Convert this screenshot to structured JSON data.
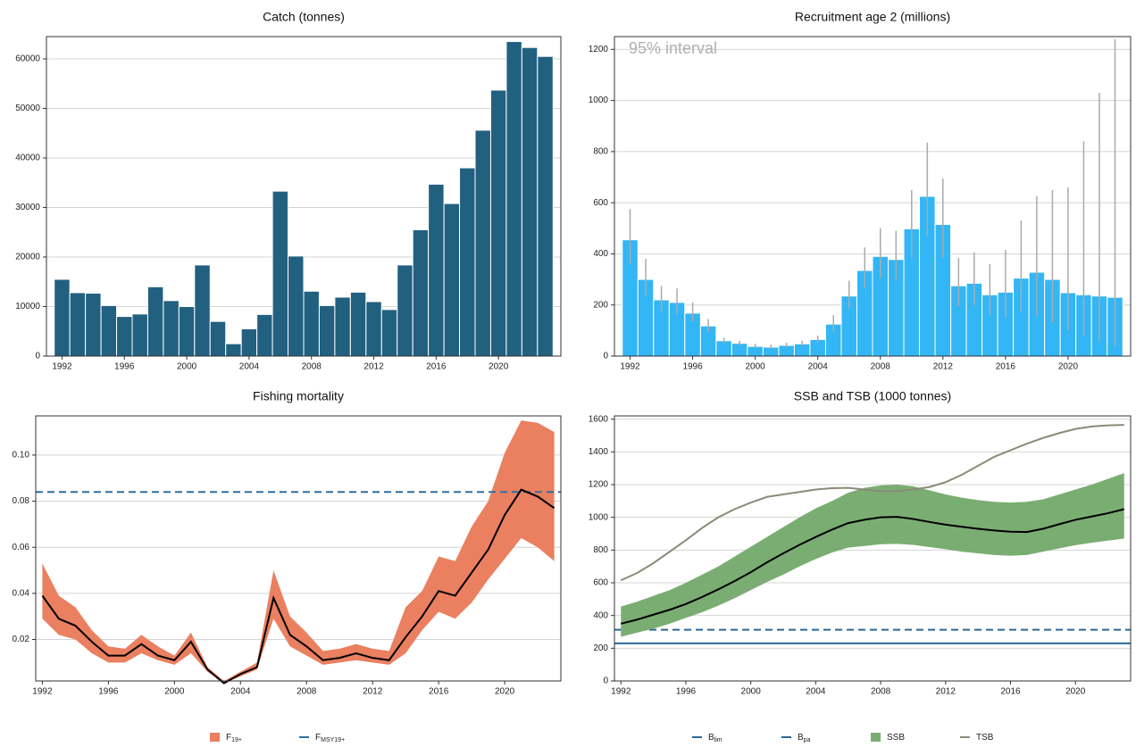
{
  "chart_data": [
    {
      "type": "bar",
      "title": "Catch (tonnes)",
      "x": [
        1992,
        1993,
        1994,
        1995,
        1996,
        1997,
        1998,
        1999,
        2000,
        2001,
        2002,
        2003,
        2004,
        2005,
        2006,
        2007,
        2008,
        2009,
        2010,
        2011,
        2012,
        2013,
        2014,
        2015,
        2016,
        2017,
        2018,
        2019,
        2020,
        2021,
        2022,
        2023
      ],
      "values": [
        15500,
        12800,
        12700,
        10200,
        8000,
        8500,
        14000,
        11200,
        10000,
        18400,
        7000,
        2500,
        5500,
        8400,
        33300,
        20200,
        13100,
        10200,
        11900,
        12900,
        11000,
        9400,
        18400,
        25500,
        34700,
        30800,
        38000,
        45600,
        53700,
        63500,
        62300,
        60500
      ],
      "color": "#22607f",
      "xlim": [
        1991,
        2024
      ],
      "xticks": [
        1992,
        1996,
        2000,
        2004,
        2008,
        2012,
        2016,
        2020
      ],
      "ylim": [
        0,
        64500
      ],
      "yticks": [
        0,
        10000,
        20000,
        30000,
        40000,
        50000,
        60000
      ],
      "grid": true
    },
    {
      "type": "bar",
      "title": "Recruitment age 2 (millions)",
      "annotation": "95% interval",
      "x": [
        1992,
        1993,
        1994,
        1995,
        1996,
        1997,
        1998,
        1999,
        2000,
        2001,
        2002,
        2003,
        2004,
        2005,
        2006,
        2007,
        2008,
        2009,
        2010,
        2011,
        2012,
        2013,
        2014,
        2015,
        2016,
        2017,
        2018,
        2019,
        2020,
        2021,
        2022,
        2023
      ],
      "values": [
        455,
        300,
        220,
        210,
        168,
        118,
        60,
        50,
        38,
        35,
        42,
        48,
        65,
        125,
        235,
        335,
        390,
        378,
        498,
        625,
        515,
        275,
        285,
        240,
        250,
        305,
        328,
        300,
        248,
        240,
        235,
        230
      ],
      "lower": [
        360,
        235,
        175,
        165,
        135,
        95,
        50,
        42,
        30,
        28,
        34,
        38,
        52,
        95,
        185,
        265,
        305,
        295,
        385,
        470,
        385,
        195,
        200,
        160,
        150,
        170,
        160,
        130,
        100,
        80,
        60,
        40
      ],
      "upper": [
        575,
        380,
        275,
        265,
        210,
        145,
        72,
        60,
        48,
        45,
        52,
        60,
        80,
        160,
        295,
        425,
        500,
        490,
        650,
        835,
        695,
        385,
        405,
        360,
        415,
        530,
        625,
        650,
        660,
        840,
        1030,
        1240
      ],
      "color": "#33b6f5",
      "error_color": "#aaaaaa",
      "xlim": [
        1991,
        2024
      ],
      "xticks": [
        1992,
        1996,
        2000,
        2004,
        2008,
        2012,
        2016,
        2020
      ],
      "ylim": [
        0,
        1250
      ],
      "yticks": [
        0,
        200,
        400,
        600,
        800,
        1000,
        1200
      ],
      "grid": true
    },
    {
      "type": "line",
      "title": "Fishing mortality",
      "x": [
        1992,
        1993,
        1994,
        1995,
        1996,
        1997,
        1998,
        1999,
        2000,
        2001,
        2002,
        2003,
        2004,
        2005,
        2006,
        2007,
        2008,
        2009,
        2010,
        2011,
        2012,
        2013,
        2014,
        2015,
        2016,
        2017,
        2018,
        2019,
        2020,
        2021,
        2022,
        2023
      ],
      "series": [
        {
          "name": "F",
          "name_sub": "19+",
          "color": "#000000",
          "band_color": "#ea8060",
          "values": [
            0.039,
            0.029,
            0.026,
            0.019,
            0.013,
            0.013,
            0.018,
            0.013,
            0.011,
            0.019,
            0.007,
            0.001,
            0.005,
            0.008,
            0.038,
            0.022,
            0.017,
            0.011,
            0.012,
            0.014,
            0.012,
            0.011,
            0.021,
            0.03,
            0.041,
            0.039,
            0.049,
            0.059,
            0.074,
            0.085,
            0.082,
            0.077
          ],
          "lower": [
            0.029,
            0.022,
            0.02,
            0.014,
            0.01,
            0.01,
            0.014,
            0.011,
            0.009,
            0.014,
            0.006,
            0.001,
            0.004,
            0.007,
            0.029,
            0.017,
            0.013,
            0.009,
            0.01,
            0.011,
            0.01,
            0.009,
            0.014,
            0.024,
            0.032,
            0.029,
            0.036,
            0.046,
            0.055,
            0.064,
            0.06,
            0.054
          ],
          "upper": [
            0.053,
            0.039,
            0.034,
            0.024,
            0.017,
            0.016,
            0.022,
            0.017,
            0.013,
            0.023,
            0.008,
            0.002,
            0.006,
            0.01,
            0.05,
            0.03,
            0.023,
            0.015,
            0.016,
            0.018,
            0.016,
            0.015,
            0.034,
            0.041,
            0.056,
            0.054,
            0.069,
            0.08,
            0.101,
            0.115,
            0.114,
            0.11
          ]
        },
        {
          "name": "F",
          "name_sub": "MSY19+",
          "kind": "hline",
          "value": 0.084,
          "color": "#2f6fa0",
          "dashed": true
        }
      ],
      "xlim": [
        1991.6,
        2023.4
      ],
      "xticks": [
        1992,
        1996,
        2000,
        2004,
        2008,
        2012,
        2016,
        2020
      ],
      "ylim": [
        0.002,
        0.117
      ],
      "yticks": [
        0.02,
        0.04,
        0.06,
        0.08,
        {
          "value": 0.1,
          "label": "0.10"
        }
      ],
      "grid": true
    },
    {
      "type": "line",
      "title": "SSB and TSB (1000 tonnes)",
      "x": [
        1992,
        1993,
        1994,
        1995,
        1996,
        1997,
        1998,
        1999,
        2000,
        2001,
        2002,
        2003,
        2004,
        2005,
        2006,
        2007,
        2008,
        2009,
        2010,
        2011,
        2012,
        2013,
        2014,
        2015,
        2016,
        2017,
        2018,
        2019,
        2020,
        2021,
        2022,
        2023
      ],
      "series": [
        {
          "name": "B",
          "name_sub": "lim",
          "kind": "hline",
          "value": 230,
          "color": "#2b6896",
          "dashed": false
        },
        {
          "name": "B",
          "name_sub": "pa",
          "kind": "hline",
          "value": 313,
          "color": "#2b6896",
          "dashed": true
        },
        {
          "name": "SSB",
          "color": "#000000",
          "band_color": "#7aad72",
          "values": [
            350,
            375,
            405,
            435,
            470,
            513,
            560,
            610,
            665,
            725,
            780,
            832,
            880,
            925,
            965,
            985,
            1000,
            1003,
            990,
            972,
            955,
            942,
            930,
            920,
            912,
            910,
            930,
            958,
            985,
            1005,
            1025,
            1050
          ],
          "lower": [
            270,
            295,
            320,
            350,
            385,
            420,
            460,
            505,
            555,
            605,
            650,
            700,
            745,
            785,
            815,
            825,
            835,
            838,
            832,
            818,
            805,
            790,
            780,
            770,
            765,
            770,
            790,
            810,
            830,
            845,
            858,
            870
          ],
          "upper": [
            455,
            485,
            520,
            555,
            600,
            650,
            700,
            760,
            820,
            880,
            940,
            1000,
            1055,
            1100,
            1150,
            1180,
            1195,
            1200,
            1190,
            1165,
            1140,
            1120,
            1105,
            1095,
            1090,
            1095,
            1110,
            1140,
            1170,
            1200,
            1235,
            1270
          ]
        },
        {
          "name": "TSB",
          "color": "#8c8a78",
          "values": [
            615,
            660,
            720,
            790,
            860,
            935,
            1000,
            1050,
            1090,
            1125,
            1140,
            1155,
            1170,
            1178,
            1180,
            1170,
            1160,
            1160,
            1170,
            1185,
            1215,
            1260,
            1315,
            1370,
            1410,
            1450,
            1485,
            1515,
            1540,
            1555,
            1562,
            1565
          ]
        }
      ],
      "xlim": [
        1991.6,
        2023.4
      ],
      "xticks": [
        1992,
        1996,
        2000,
        2004,
        2008,
        2012,
        2016,
        2020
      ],
      "ylim": [
        0,
        1620
      ],
      "yticks": [
        0,
        200,
        400,
        600,
        800,
        1000,
        1200,
        1400,
        1600
      ],
      "grid": true
    }
  ]
}
